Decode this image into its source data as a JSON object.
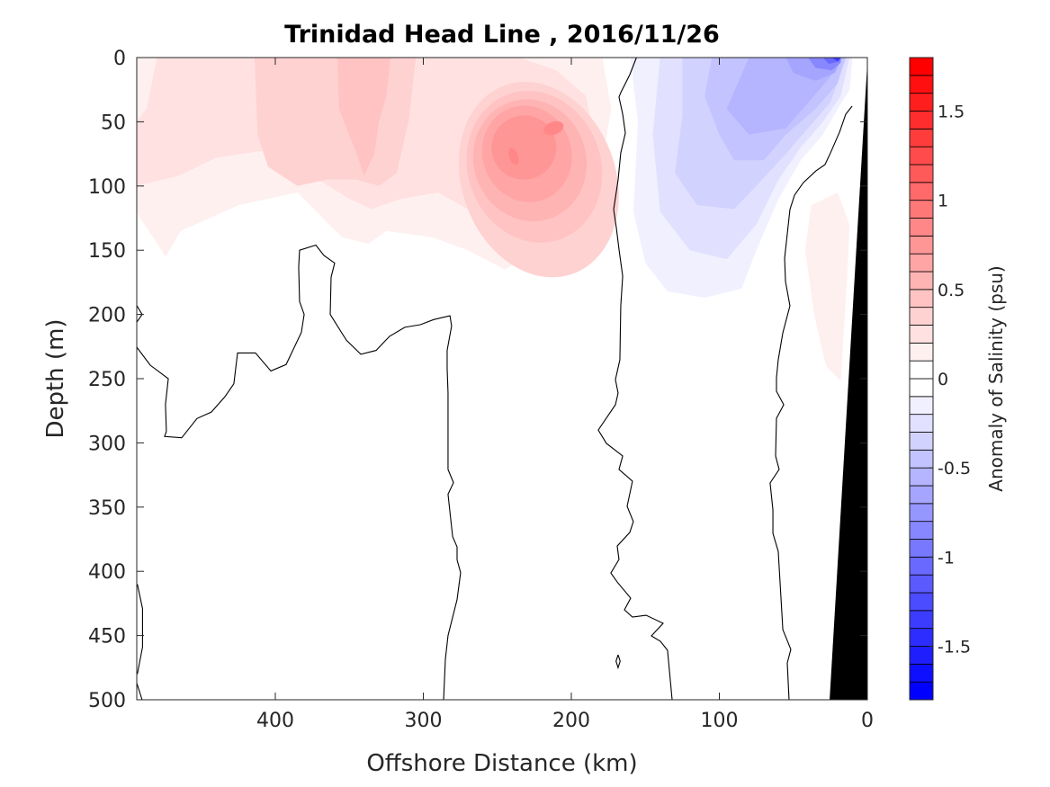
{
  "chart_data": {
    "type": "contour",
    "title": "Trinidad Head Line , 2016/11/26",
    "xlabel": "Offshore Distance (km)",
    "ylabel": "Depth (m)",
    "xlim": [
      493.6,
      0
    ],
    "ylim": [
      0,
      500
    ],
    "x_reversed": true,
    "y_reversed": true,
    "xticks": [
      400,
      300,
      200,
      100,
      0
    ],
    "xtick_labels": [
      "400",
      "300",
      "200",
      "100",
      "0"
    ],
    "yticks": [
      0,
      50,
      100,
      150,
      200,
      250,
      300,
      350,
      400,
      450,
      500
    ],
    "ytick_labels": [
      "0",
      "50",
      "100",
      "150",
      "200",
      "250",
      "300",
      "350",
      "400",
      "450",
      "500"
    ],
    "colorbar": {
      "label": "Anomaly of Salinity (psu)",
      "range": [
        -1.8,
        1.8
      ],
      "level_step": 0.1,
      "ticks": [
        1.5,
        1,
        0.5,
        0,
        -0.5,
        -1,
        -1.5
      ],
      "tick_labels": [
        "1.5",
        "1",
        "0.5",
        "0",
        "-0.5",
        "-1",
        "-1.5"
      ],
      "positive_color": "#ff0000",
      "negative_color": "#0000ff",
      "zero_color": "#ffffff"
    },
    "filled_regions": [
      {
        "level": 0.1,
        "points": [
          [
            494,
            0
          ],
          [
            494,
            120
          ],
          [
            474,
            155
          ],
          [
            464,
            135
          ],
          [
            425,
            115
          ],
          [
            385,
            105
          ],
          [
            355,
            140
          ],
          [
            337,
            145
          ],
          [
            325,
            135
          ],
          [
            294,
            140
          ],
          [
            270,
            150
          ],
          [
            245,
            165
          ],
          [
            221,
            150
          ],
          [
            197,
            120
          ],
          [
            179,
            80
          ],
          [
            173,
            40
          ],
          [
            179,
            0
          ]
        ]
      },
      {
        "level": 0.1,
        "points": [
          [
            20,
            105
          ],
          [
            38,
            115
          ],
          [
            42,
            150
          ],
          [
            36,
            200
          ],
          [
            28,
            240
          ],
          [
            18,
            252
          ],
          [
            14,
            180
          ],
          [
            12,
            130
          ]
        ]
      },
      {
        "level": 0.2,
        "points": [
          [
            480,
            0
          ],
          [
            487,
            40
          ],
          [
            494,
            50
          ],
          [
            494,
            100
          ],
          [
            465,
            92
          ],
          [
            440,
            78
          ],
          [
            405,
            72
          ],
          [
            385,
            85
          ],
          [
            350,
            110
          ],
          [
            335,
            118
          ],
          [
            315,
            110
          ],
          [
            290,
            105
          ],
          [
            270,
            118
          ],
          [
            245,
            132
          ],
          [
            215,
            125
          ],
          [
            195,
            100
          ],
          [
            185,
            60
          ],
          [
            190,
            30
          ],
          [
            210,
            10
          ],
          [
            235,
            0
          ]
        ]
      },
      {
        "level": 0.3,
        "points": [
          [
            414,
            0
          ],
          [
            412,
            60
          ],
          [
            405,
            85
          ],
          [
            385,
            100
          ],
          [
            365,
            95
          ],
          [
            345,
            95
          ],
          [
            330,
            100
          ],
          [
            318,
            90
          ],
          [
            310,
            50
          ],
          [
            305,
            0
          ]
        ]
      },
      {
        "level": 0.4,
        "points": [
          [
            358,
            0
          ],
          [
            357,
            40
          ],
          [
            345,
            75
          ],
          [
            340,
            92
          ],
          [
            333,
            75
          ],
          [
            330,
            50
          ],
          [
            325,
            30
          ],
          [
            322,
            0
          ]
        ]
      },
      {
        "level": -0.1,
        "points": [
          [
            160,
            0
          ],
          [
            155,
            50
          ],
          [
            158,
            120
          ],
          [
            150,
            160
          ],
          [
            135,
            182
          ],
          [
            110,
            187
          ],
          [
            85,
            180
          ],
          [
            75,
            150
          ],
          [
            60,
            110
          ],
          [
            45,
            80
          ],
          [
            30,
            60
          ],
          [
            20,
            40
          ],
          [
            12,
            25
          ],
          [
            10,
            0
          ]
        ]
      },
      {
        "level": -0.2,
        "points": [
          [
            140,
            0
          ],
          [
            145,
            60
          ],
          [
            140,
            120
          ],
          [
            120,
            150
          ],
          [
            95,
            157
          ],
          [
            75,
            130
          ],
          [
            60,
            95
          ],
          [
            45,
            70
          ],
          [
            30,
            50
          ],
          [
            18,
            30
          ],
          [
            12,
            0
          ]
        ]
      },
      {
        "level": -0.3,
        "points": [
          [
            125,
            0
          ],
          [
            125,
            45
          ],
          [
            130,
            90
          ],
          [
            115,
            115
          ],
          [
            90,
            118
          ],
          [
            75,
            100
          ],
          [
            55,
            75
          ],
          [
            40,
            55
          ],
          [
            25,
            35
          ],
          [
            14,
            0
          ]
        ]
      },
      {
        "level": -0.4,
        "points": [
          [
            105,
            0
          ],
          [
            110,
            30
          ],
          [
            100,
            60
          ],
          [
            90,
            80
          ],
          [
            70,
            80
          ],
          [
            55,
            60
          ],
          [
            35,
            40
          ],
          [
            20,
            20
          ],
          [
            15,
            0
          ]
        ]
      },
      {
        "level": -0.5,
        "points": [
          [
            80,
            0
          ],
          [
            95,
            40
          ],
          [
            80,
            60
          ],
          [
            55,
            55
          ],
          [
            40,
            35
          ],
          [
            25,
            15
          ],
          [
            17,
            0
          ]
        ]
      },
      {
        "level": -0.6,
        "points": [
          [
            55,
            0
          ],
          [
            50,
            12
          ],
          [
            35,
            18
          ],
          [
            22,
            12
          ],
          [
            17,
            0
          ]
        ]
      },
      {
        "level": -0.8,
        "points": [
          [
            40,
            0
          ],
          [
            35,
            8
          ],
          [
            24,
            10
          ],
          [
            18,
            4
          ],
          [
            18,
            0
          ]
        ]
      },
      {
        "level": -1.0,
        "points": [
          [
            30,
            0
          ],
          [
            26,
            5
          ],
          [
            19,
            3
          ],
          [
            18,
            0
          ]
        ]
      },
      {
        "level": -1.3,
        "points": [
          [
            24,
            0
          ],
          [
            20,
            3
          ],
          [
            18,
            0
          ]
        ]
      }
    ],
    "filled_blobs": [
      {
        "level": 0.3,
        "center": [
          222,
          95
        ],
        "radius": [
          52,
          78
        ]
      },
      {
        "level": 0.4,
        "center": [
          225,
          85
        ],
        "radius": [
          45,
          60
        ]
      },
      {
        "level": 0.5,
        "center": [
          228,
          80
        ],
        "radius": [
          38,
          48
        ]
      },
      {
        "level": 0.6,
        "center": [
          230,
          75
        ],
        "radius": [
          30,
          38
        ]
      },
      {
        "level": 0.7,
        "center": [
          232,
          70
        ],
        "radius": [
          22,
          25
        ]
      },
      {
        "level": 0.8,
        "center": [
          239,
          77
        ],
        "radius": [
          3,
          7
        ]
      },
      {
        "level": 0.8,
        "center": [
          212,
          55
        ],
        "radius": [
          7,
          5
        ]
      }
    ],
    "zero_contours": [
      [
        [
          493.6,
          225.5
        ],
        [
          484.5,
          239.5
        ],
        [
          472.3,
          250
        ],
        [
          474.2,
          270
        ],
        [
          473.6,
          291
        ],
        [
          474.8,
          295
        ],
        [
          463.2,
          296
        ],
        [
          458.4,
          289
        ],
        [
          452.9,
          281
        ],
        [
          443.2,
          276
        ],
        [
          434,
          264
        ],
        [
          428,
          254
        ],
        [
          425.5,
          230
        ],
        [
          413.4,
          230
        ],
        [
          403,
          244
        ],
        [
          392.7,
          239
        ],
        [
          382.4,
          214
        ],
        [
          380.5,
          200
        ],
        [
          383.6,
          190
        ],
        [
          384.2,
          163
        ],
        [
          383.6,
          150
        ],
        [
          372.6,
          146
        ],
        [
          367.2,
          154
        ],
        [
          359.9,
          160
        ],
        [
          362.3,
          171
        ],
        [
          362.9,
          200
        ],
        [
          352,
          220
        ],
        [
          342.2,
          231
        ],
        [
          331.9,
          228
        ],
        [
          322.8,
          217
        ],
        [
          312.5,
          210
        ],
        [
          302,
          208
        ],
        [
          293,
          204
        ],
        [
          282,
          201
        ],
        [
          280.9,
          209
        ],
        [
          283.9,
          228
        ],
        [
          283.9,
          242
        ],
        [
          283.3,
          261
        ],
        [
          283.3,
          320.7
        ],
        [
          279.6,
          331
        ],
        [
          283.3,
          340
        ],
        [
          280.2,
          373
        ],
        [
          277.2,
          381
        ],
        [
          277.2,
          391
        ],
        [
          274.8,
          401
        ],
        [
          277.2,
          422
        ],
        [
          283.3,
          450
        ],
        [
          285.1,
          468.5
        ],
        [
          286.3,
          500
        ]
      ],
      [
        [
          156,
          0
        ],
        [
          160.5,
          13.3
        ],
        [
          166.6,
          27.3
        ],
        [
          167.8,
          30.8
        ],
        [
          165.3,
          44
        ],
        [
          163.5,
          58.8
        ],
        [
          166.6,
          74.2
        ],
        [
          168.4,
          95.2
        ],
        [
          171.4,
          118.3
        ],
        [
          169.6,
          132.4
        ],
        [
          167.8,
          149.2
        ],
        [
          165.3,
          170.2
        ],
        [
          166.6,
          193.3
        ],
        [
          167.2,
          235.3
        ],
        [
          170.2,
          250.7
        ],
        [
          168.4,
          261.2
        ],
        [
          170.2,
          270.3
        ],
        [
          181.8,
          290
        ],
        [
          176.3,
          300.4
        ],
        [
          165.3,
          310.2
        ],
        [
          167.8,
          320.7
        ],
        [
          158.7,
          329.8
        ],
        [
          162.3,
          349.4
        ],
        [
          158.1,
          361.3
        ],
        [
          160.5,
          369.7
        ],
        [
          169,
          380.3
        ],
        [
          167.8,
          390.8
        ],
        [
          173.3,
          401.3
        ],
        [
          169,
          408.3
        ],
        [
          159.9,
          420.9
        ],
        [
          164.1,
          430
        ],
        [
          158.7,
          435.6
        ],
        [
          149.5,
          434.2
        ],
        [
          138,
          440.5
        ],
        [
          145.9,
          450.3
        ],
        [
          139.8,
          454.5
        ],
        [
          135,
          461.5
        ],
        [
          131.9,
          500
        ]
      ],
      [
        [
          10.3,
          37.8
        ],
        [
          14.6,
          44.1
        ],
        [
          18.8,
          58.1
        ],
        [
          24.9,
          74.2
        ],
        [
          28.6,
          83.3
        ],
        [
          34.7,
          88.2
        ],
        [
          43.2,
          97.3
        ],
        [
          49.2,
          107.1
        ],
        [
          52.3,
          118.3
        ],
        [
          54.1,
          137.3
        ],
        [
          55.9,
          156.2
        ],
        [
          55.3,
          174.4
        ],
        [
          52.3,
          193.3
        ],
        [
          57.1,
          214.3
        ],
        [
          60.2,
          235.3
        ],
        [
          61.4,
          249.3
        ],
        [
          61.4,
          259.8
        ],
        [
          56.5,
          270.3
        ],
        [
          61.4,
          280.8
        ],
        [
          62,
          310.2
        ],
        [
          59.6,
          320.7
        ],
        [
          65.7,
          331.2
        ],
        [
          63.8,
          352.2
        ],
        [
          63.8,
          370.4
        ],
        [
          60.2,
          384.5
        ],
        [
          57.1,
          445.4
        ],
        [
          51.7,
          460.8
        ],
        [
          54.1,
          471.3
        ],
        [
          52.9,
          500
        ]
      ],
      [
        [
          493.6,
          193
        ],
        [
          490,
          200
        ],
        [
          493.6,
          206
        ]
      ],
      [
        [
          493.2,
          410
        ],
        [
          489.7,
          429
        ],
        [
          489.7,
          459
        ],
        [
          493.2,
          480
        ]
      ],
      [
        [
          493.6,
          487
        ],
        [
          490,
          500
        ]
      ],
      [
        [
          168.4,
          465
        ],
        [
          167,
          470
        ],
        [
          168.4,
          475
        ],
        [
          169.8,
          470
        ],
        [
          168.4,
          465
        ]
      ]
    ],
    "bathymetry": {
      "color": "#000000",
      "points": [
        [
          0,
          4
        ],
        [
          25.5,
          500
        ],
        [
          0,
          500
        ]
      ]
    }
  }
}
